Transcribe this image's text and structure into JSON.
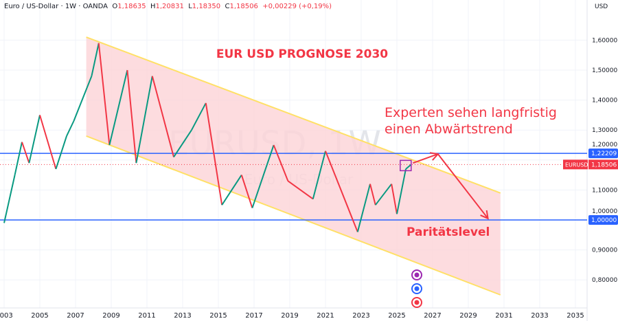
{
  "header": {
    "symbol": "Euro / US-Dollar · 1W · OANDA",
    "open_label": "O",
    "open": "1,18635",
    "high_label": "H",
    "high": "1,20831",
    "low_label": "L",
    "low": "1,18350",
    "close_label": "C",
    "close": "1,18506",
    "change": "+0,00229 (+0,19%)"
  },
  "currency": "USD",
  "watermark": {
    "line1": "EURUSD, 1W",
    "line2": "Euro / US-Dollar"
  },
  "annotations": {
    "title": "EUR USD PROGNOSE 2030",
    "experts": [
      "Experten sehen langfristig",
      "einen Abwärtstrend"
    ],
    "parity": "Paritätslevel"
  },
  "colors": {
    "accent": "#f23645",
    "up": "#089981",
    "level": "#2962ff",
    "channel_line": "#ffe066",
    "channel_fill": "#fcd3d7",
    "box": "#9c27b0"
  },
  "chart_data": {
    "type": "line",
    "title": "EUR USD PROGNOSE 2030",
    "xlim": [
      2003,
      2036
    ],
    "ylim": [
      0.74,
      1.64
    ],
    "x_ticks": [
      "2003",
      "2005",
      "2007",
      "2009",
      "2011",
      "2013",
      "2015",
      "2017",
      "2019",
      "2021",
      "2023",
      "2025",
      "2027",
      "2029",
      "2031",
      "2033",
      "2035"
    ],
    "y_ticks": [
      "1,60000",
      "1,50000",
      "1,40000",
      "1,30000",
      "1,20000",
      "1,10000",
      "1,00000",
      "0,90000",
      "0,80000"
    ],
    "price": [
      [
        2003.0,
        0.99
      ],
      [
        2003.6,
        1.15
      ],
      [
        2004.0,
        1.26
      ],
      [
        2004.4,
        1.19
      ],
      [
        2005.0,
        1.35
      ],
      [
        2005.9,
        1.17
      ],
      [
        2006.5,
        1.28
      ],
      [
        2006.9,
        1.33
      ],
      [
        2007.9,
        1.48
      ],
      [
        2008.3,
        1.59
      ],
      [
        2008.9,
        1.25
      ],
      [
        2009.9,
        1.5
      ],
      [
        2010.4,
        1.19
      ],
      [
        2011.3,
        1.48
      ],
      [
        2012.5,
        1.21
      ],
      [
        2013.5,
        1.3
      ],
      [
        2014.3,
        1.39
      ],
      [
        2015.2,
        1.05
      ],
      [
        2016.3,
        1.15
      ],
      [
        2016.9,
        1.04
      ],
      [
        2018.1,
        1.25
      ],
      [
        2018.9,
        1.13
      ],
      [
        2020.3,
        1.07
      ],
      [
        2021.0,
        1.23
      ],
      [
        2022.8,
        0.96
      ],
      [
        2023.5,
        1.12
      ],
      [
        2023.8,
        1.05
      ],
      [
        2024.7,
        1.12
      ],
      [
        2025.0,
        1.02
      ],
      [
        2025.5,
        1.17
      ],
      [
        2025.8,
        1.185
      ]
    ],
    "channel_upper": [
      [
        2007.6,
        1.61
      ],
      [
        2030.8,
        1.09
      ]
    ],
    "channel_lower": [
      [
        2007.6,
        1.28
      ],
      [
        2030.8,
        0.75
      ]
    ],
    "levels": [
      {
        "value": 1.22209,
        "label": "1,22209"
      },
      {
        "value": 1.0,
        "label": "1,00000"
      }
    ],
    "last_price": {
      "value": 1.18506,
      "label": "1,18506",
      "name": "EURUSD"
    },
    "forecast_arrow": [
      [
        2025.9,
        1.19
      ],
      [
        2027.3,
        1.22
      ],
      [
        2030.1,
        1.005
      ]
    ]
  }
}
